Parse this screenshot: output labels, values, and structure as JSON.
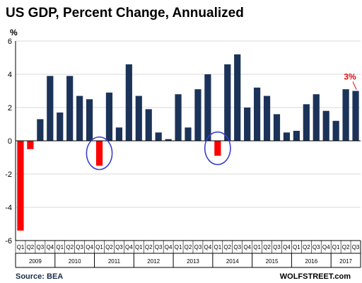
{
  "chart_data": {
    "type": "bar",
    "title": "US GDP, Percent Change, Annualized",
    "ylabel": "%",
    "ylim": [
      -6,
      6
    ],
    "yticks": [
      -6,
      -4,
      -2,
      0,
      2,
      4,
      6
    ],
    "categories": [
      "Q1",
      "Q2",
      "Q3",
      "Q4",
      "Q1",
      "Q2",
      "Q3",
      "Q4",
      "Q1",
      "Q2",
      "Q3",
      "Q4",
      "Q1",
      "Q2",
      "Q3",
      "Q4",
      "Q1",
      "Q2",
      "Q3",
      "Q4",
      "Q1",
      "Q2",
      "Q3",
      "Q4",
      "Q1",
      "Q2",
      "Q3",
      "Q4",
      "Q1",
      "Q2",
      "Q3",
      "Q4",
      "Q1",
      "Q2",
      "Q3"
    ],
    "years": [
      {
        "label": "2009",
        "span": 4
      },
      {
        "label": "2010",
        "span": 4
      },
      {
        "label": "2011",
        "span": 4
      },
      {
        "label": "2012",
        "span": 4
      },
      {
        "label": "2013",
        "span": 4
      },
      {
        "label": "2014",
        "span": 4
      },
      {
        "label": "2015",
        "span": 4
      },
      {
        "label": "2016",
        "span": 4
      },
      {
        "label": "2017",
        "span": 3
      }
    ],
    "values": [
      -5.4,
      -0.5,
      1.3,
      3.9,
      1.7,
      3.9,
      2.7,
      2.5,
      -1.5,
      2.9,
      0.8,
      4.6,
      2.7,
      1.9,
      0.5,
      0.1,
      2.8,
      0.8,
      3.1,
      4.0,
      -0.9,
      4.6,
      5.2,
      2.0,
      3.2,
      2.7,
      1.6,
      0.5,
      0.6,
      2.2,
      2.8,
      1.8,
      1.2,
      3.1,
      3.0
    ],
    "colors": {
      "positive": "#1c3359",
      "negative": "#ff0000",
      "circle": "#3a3fd1",
      "annotation": "#e01010"
    },
    "circled_indices": [
      8,
      20
    ],
    "annotation": {
      "text": "3%",
      "index": 34
    }
  },
  "footer": {
    "source": "Source: BEA",
    "brand": "WOLFSTREET.com"
  }
}
